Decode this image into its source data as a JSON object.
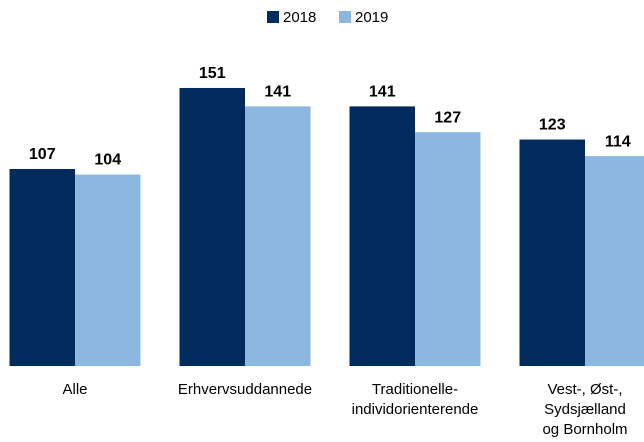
{
  "chart_data": {
    "type": "bar",
    "categories": [
      "Alle",
      "Erhvervsuddannede",
      "Traditionelle-\nindividorienterende",
      "Vest-, Øst-,\nSydsjælland\nog Bornholm"
    ],
    "series": [
      {
        "name": "2018",
        "color": "#002b5c",
        "values": [
          107,
          151,
          141,
          123
        ]
      },
      {
        "name": "2019",
        "color": "#8cb8e0",
        "values": [
          104,
          141,
          127,
          114
        ]
      }
    ],
    "ylim": [
      0,
      160
    ]
  }
}
